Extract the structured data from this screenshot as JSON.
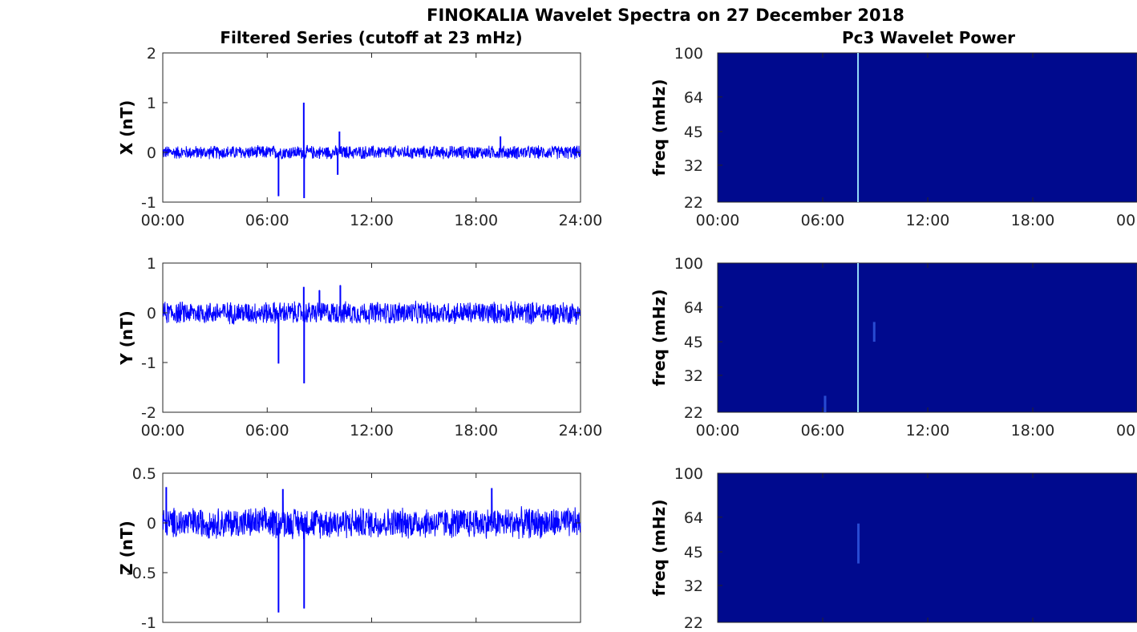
{
  "chart_data": {
    "type": "line",
    "title": "FINOKALIA Wavelet Spectra on 27 December 2018",
    "colors": {
      "series": "#0000ff",
      "spectrogram_bg": "#000a8e",
      "spike": "#9fe8ff"
    },
    "left": {
      "title": "Filtered Series (cutoff at 23 mHz)",
      "x_tick_labels": [
        "00:00",
        "06:00",
        "12:00",
        "18:00",
        "24:00"
      ],
      "panels": [
        {
          "ylabel": "X (nT)",
          "ylim": [
            -1,
            2
          ],
          "yticks": [
            "2",
            "1",
            "0",
            "-1"
          ],
          "show_xticks": true,
          "band": [
            -0.15,
            0.15
          ],
          "spikes": [
            {
              "t": 6.65,
              "v": -0.88
            },
            {
              "t": 8.1,
              "v": 1.0
            },
            {
              "t": 8.12,
              "v": -0.92
            },
            {
              "t": 10.15,
              "v": 0.42
            },
            {
              "t": 10.05,
              "v": -0.45
            },
            {
              "t": 19.4,
              "v": 0.32
            }
          ]
        },
        {
          "ylabel": "Y (nT)",
          "ylim": [
            -2,
            1
          ],
          "yticks": [
            "1",
            "0",
            "-1",
            "-2"
          ],
          "show_xticks": true,
          "band": [
            -0.25,
            0.25
          ],
          "spikes": [
            {
              "t": 6.65,
              "v": -1.02
            },
            {
              "t": 8.12,
              "v": -1.42
            },
            {
              "t": 8.1,
              "v": 0.52
            },
            {
              "t": 9.0,
              "v": 0.45
            },
            {
              "t": 10.2,
              "v": 0.55
            }
          ]
        },
        {
          "ylabel": "Z (nT)",
          "ylim": [
            -1,
            0.5
          ],
          "yticks": [
            "0.5",
            "0",
            "-0.5",
            "-1"
          ],
          "show_xticks": false,
          "band": [
            -0.17,
            0.17
          ],
          "spikes": [
            {
              "t": 6.65,
              "v": -0.9
            },
            {
              "t": 8.12,
              "v": -0.86
            },
            {
              "t": 6.9,
              "v": 0.34
            },
            {
              "t": 0.2,
              "v": 0.36
            },
            {
              "t": 18.9,
              "v": 0.35
            }
          ]
        }
      ]
    },
    "right": {
      "title": "Pc3 Wavelet Power",
      "x_tick_labels": [
        "00:00",
        "06:00",
        "12:00",
        "18:00",
        "00"
      ],
      "ylabel": "freq (mHz)",
      "yticks": [
        "100",
        "64",
        "45",
        "32",
        "22"
      ],
      "panels": [
        {
          "show_xticks": true,
          "features": [
            {
              "t": 8.0,
              "f0": 22,
              "f1": 100,
              "intensity": 0.9
            }
          ]
        },
        {
          "show_xticks": true,
          "features": [
            {
              "t": 8.0,
              "f0": 22,
              "f1": 100,
              "intensity": 0.8
            },
            {
              "t": 8.9,
              "f0": 45,
              "f1": 55,
              "intensity": 0.4
            },
            {
              "t": 6.1,
              "f0": 22,
              "f1": 26,
              "intensity": 0.4
            }
          ]
        },
        {
          "show_xticks": false,
          "features": [
            {
              "t": 8.0,
              "f0": 40,
              "f1": 60,
              "intensity": 0.25
            }
          ]
        }
      ]
    }
  }
}
